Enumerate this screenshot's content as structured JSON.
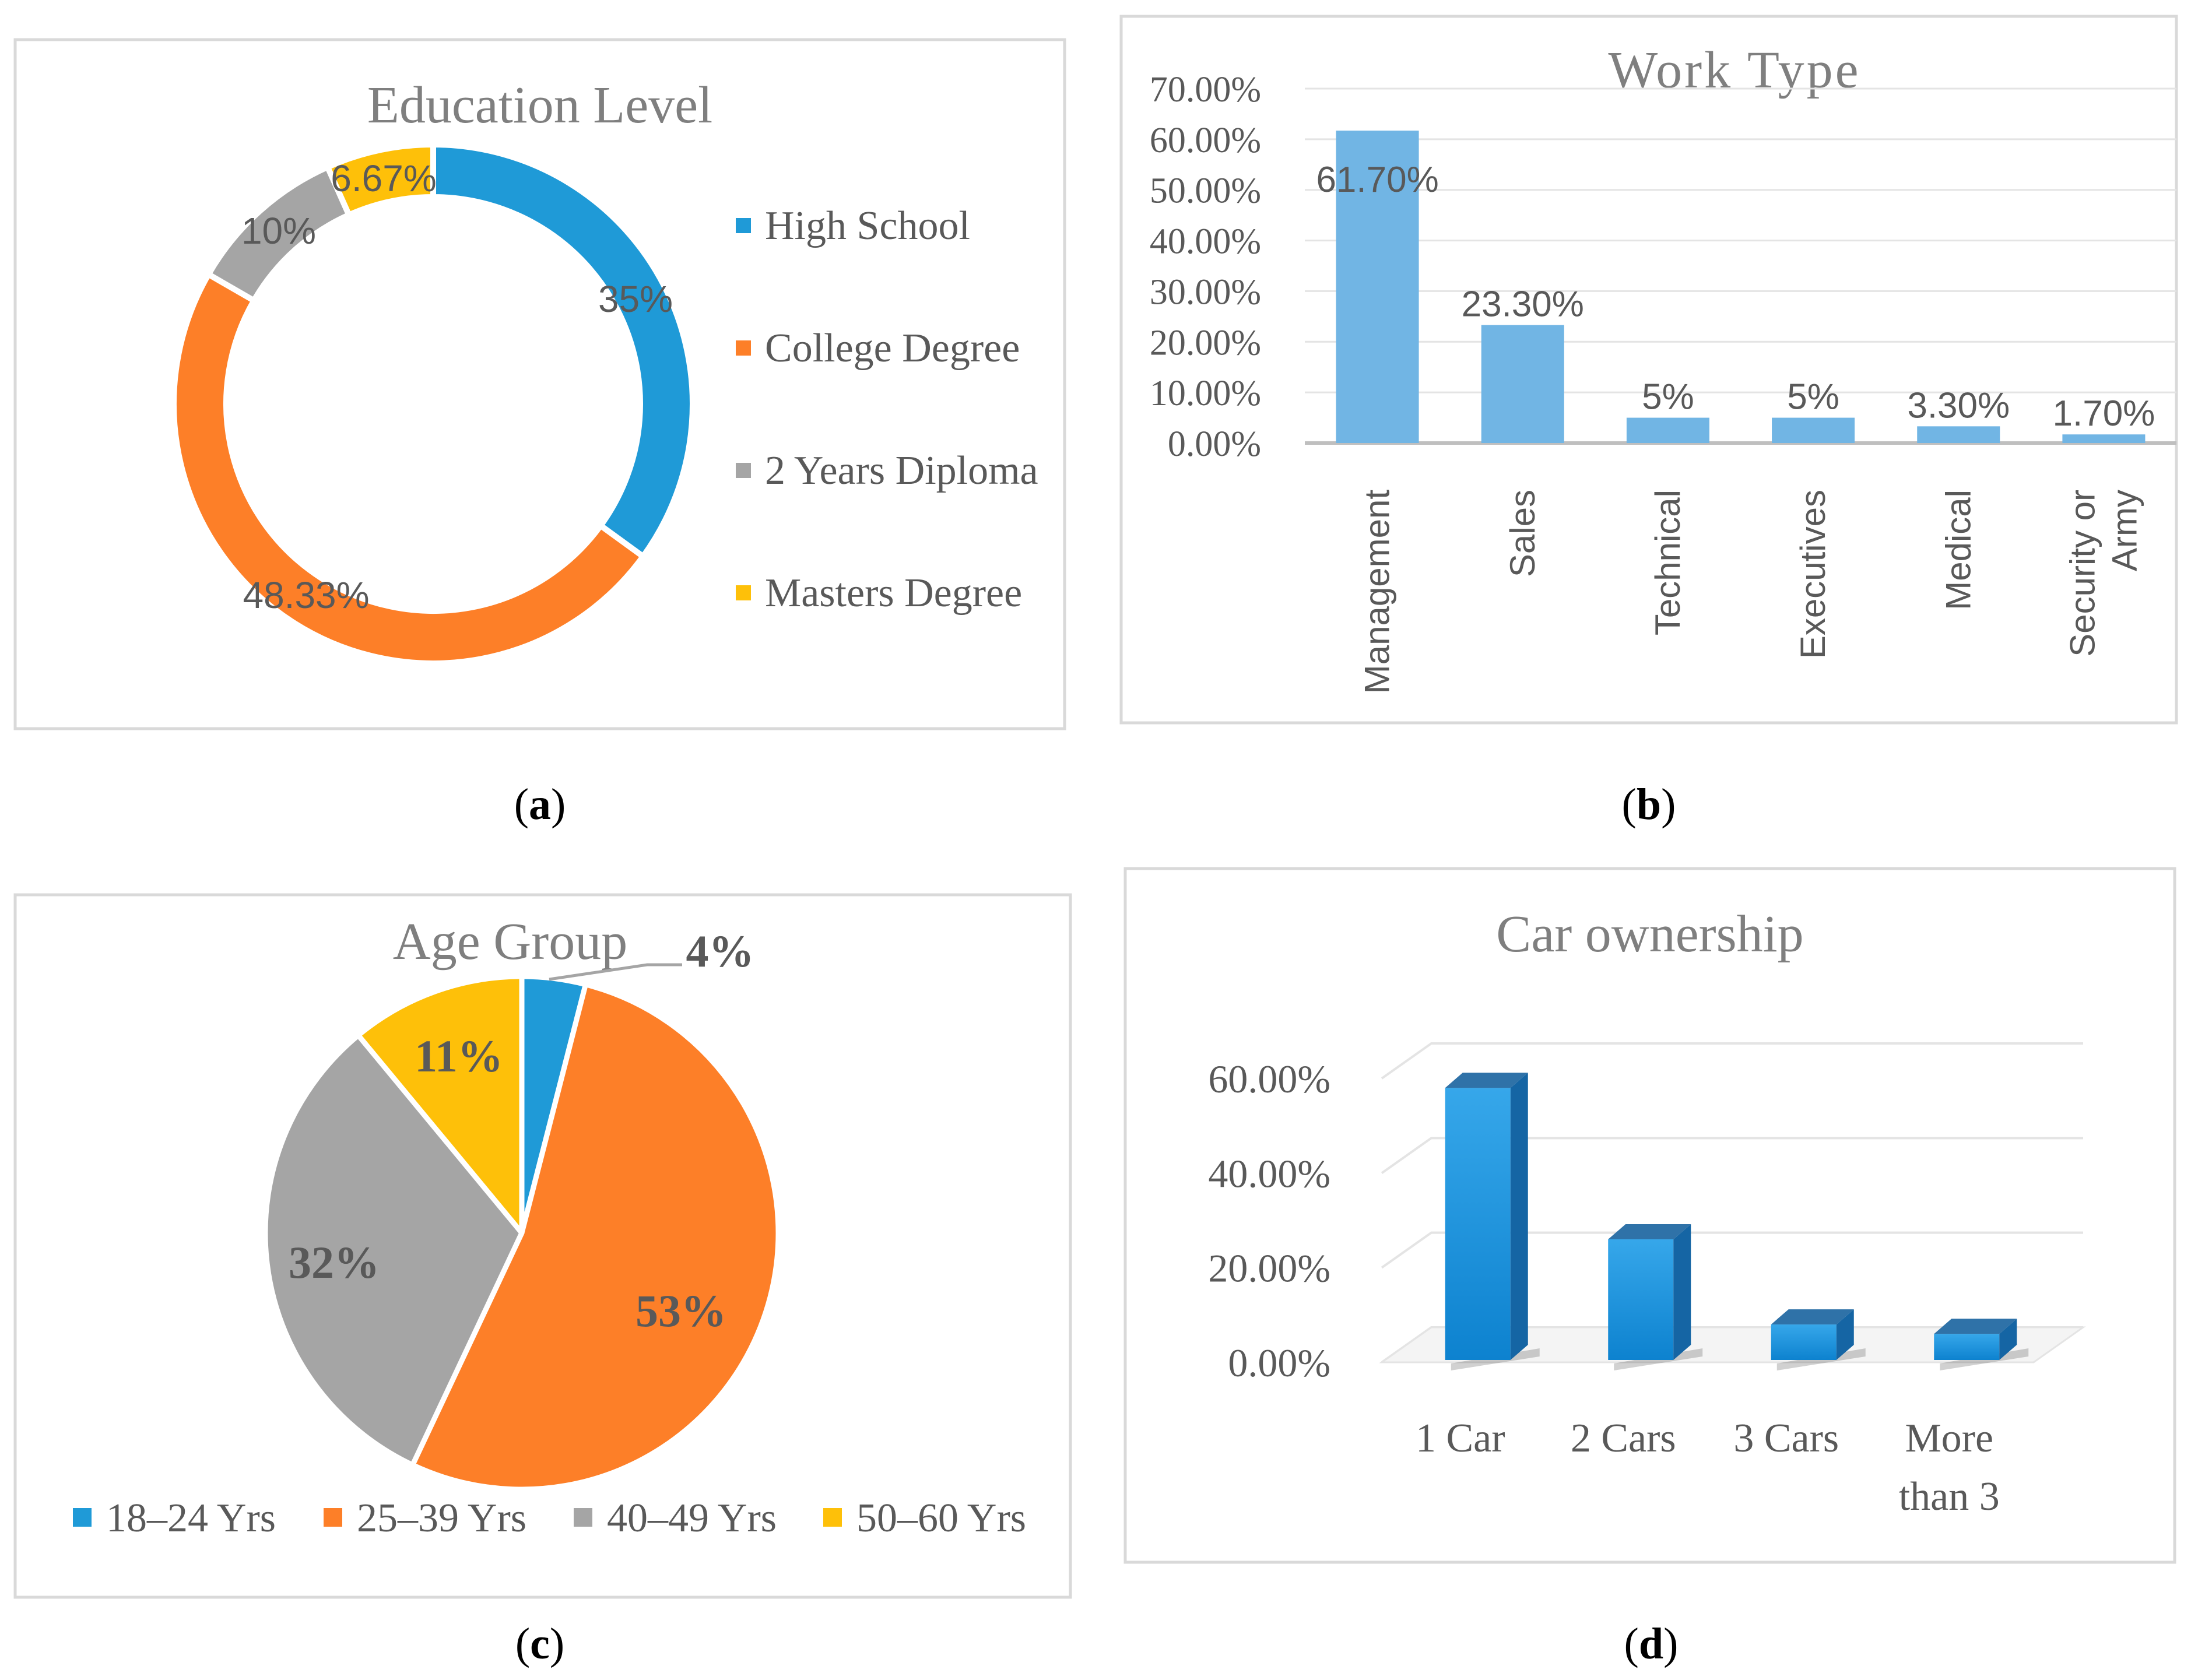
{
  "colors": {
    "blue": "#1f9ad7",
    "orange": "#fd7f28",
    "gray": "#a5a5a5",
    "yellow": "#fec009",
    "bar_light_blue": "#71b5e4",
    "bar3d_front": "#1a8fd9",
    "bar3d_top": "#2f72a8",
    "bar3d_side": "#1565a4",
    "frame": "#d9d9d9",
    "grid": "#e4e4e4",
    "axis_text": "#595959"
  },
  "chart_data": [
    {
      "panel_label": "a",
      "type": "pie",
      "variant": "donut",
      "title": "Education Level",
      "categories": [
        "High School",
        "College Degree",
        "2 Years Diploma",
        "Masters Degree"
      ],
      "values": [
        35,
        48.33,
        10,
        6.67
      ],
      "data_labels": [
        "35%",
        "48.33%",
        "10%",
        "6.67%"
      ],
      "legend_position": "right"
    },
    {
      "panel_label": "b",
      "type": "bar",
      "title": "Work Type",
      "categories": [
        "Management",
        "Sales",
        "Technical",
        "Executives",
        "Medical",
        "Security or Army"
      ],
      "category_lines": [
        [
          "Management"
        ],
        [
          "Sales"
        ],
        [
          "Technical"
        ],
        [
          "Executives"
        ],
        [
          "Medical"
        ],
        [
          "Security or",
          "Army"
        ]
      ],
      "values": [
        61.7,
        23.3,
        5,
        5,
        3.3,
        1.7
      ],
      "data_labels": [
        "61.70%",
        "23.30%",
        "5%",
        "5%",
        "3.30%",
        "1.70%"
      ],
      "ylim": [
        0,
        70
      ],
      "yticks": [
        0,
        10,
        20,
        30,
        40,
        50,
        60,
        70
      ],
      "ytick_labels": [
        "0.00%",
        "10.00%",
        "20.00%",
        "30.00%",
        "40.00%",
        "50.00%",
        "60.00%",
        "70.00%"
      ],
      "grid": true
    },
    {
      "panel_label": "c",
      "type": "pie",
      "title": "Age Group",
      "categories": [
        "18–24 Yrs",
        "25–39 Yrs",
        "40–49 Yrs",
        "50–60 Yrs"
      ],
      "values": [
        4,
        53,
        32,
        11
      ],
      "data_labels": [
        "4%",
        "53%",
        "32%",
        "11%"
      ],
      "legend_position": "bottom"
    },
    {
      "panel_label": "d",
      "type": "bar",
      "variant": "3d-column",
      "title": "Car ownership",
      "categories": [
        "1 Car",
        "2 Cars",
        "3 Cars",
        "More than 3"
      ],
      "category_lines": [
        [
          "1 Car"
        ],
        [
          "2 Cars"
        ],
        [
          "3 Cars"
        ],
        [
          "More",
          "than 3"
        ]
      ],
      "values": [
        58,
        26,
        8,
        6
      ],
      "ylim": [
        0,
        60
      ],
      "yticks": [
        0,
        20,
        40,
        60
      ],
      "ytick_labels": [
        "0.00%",
        "20.00%",
        "40.00%",
        "60.00%"
      ],
      "grid": true
    }
  ]
}
